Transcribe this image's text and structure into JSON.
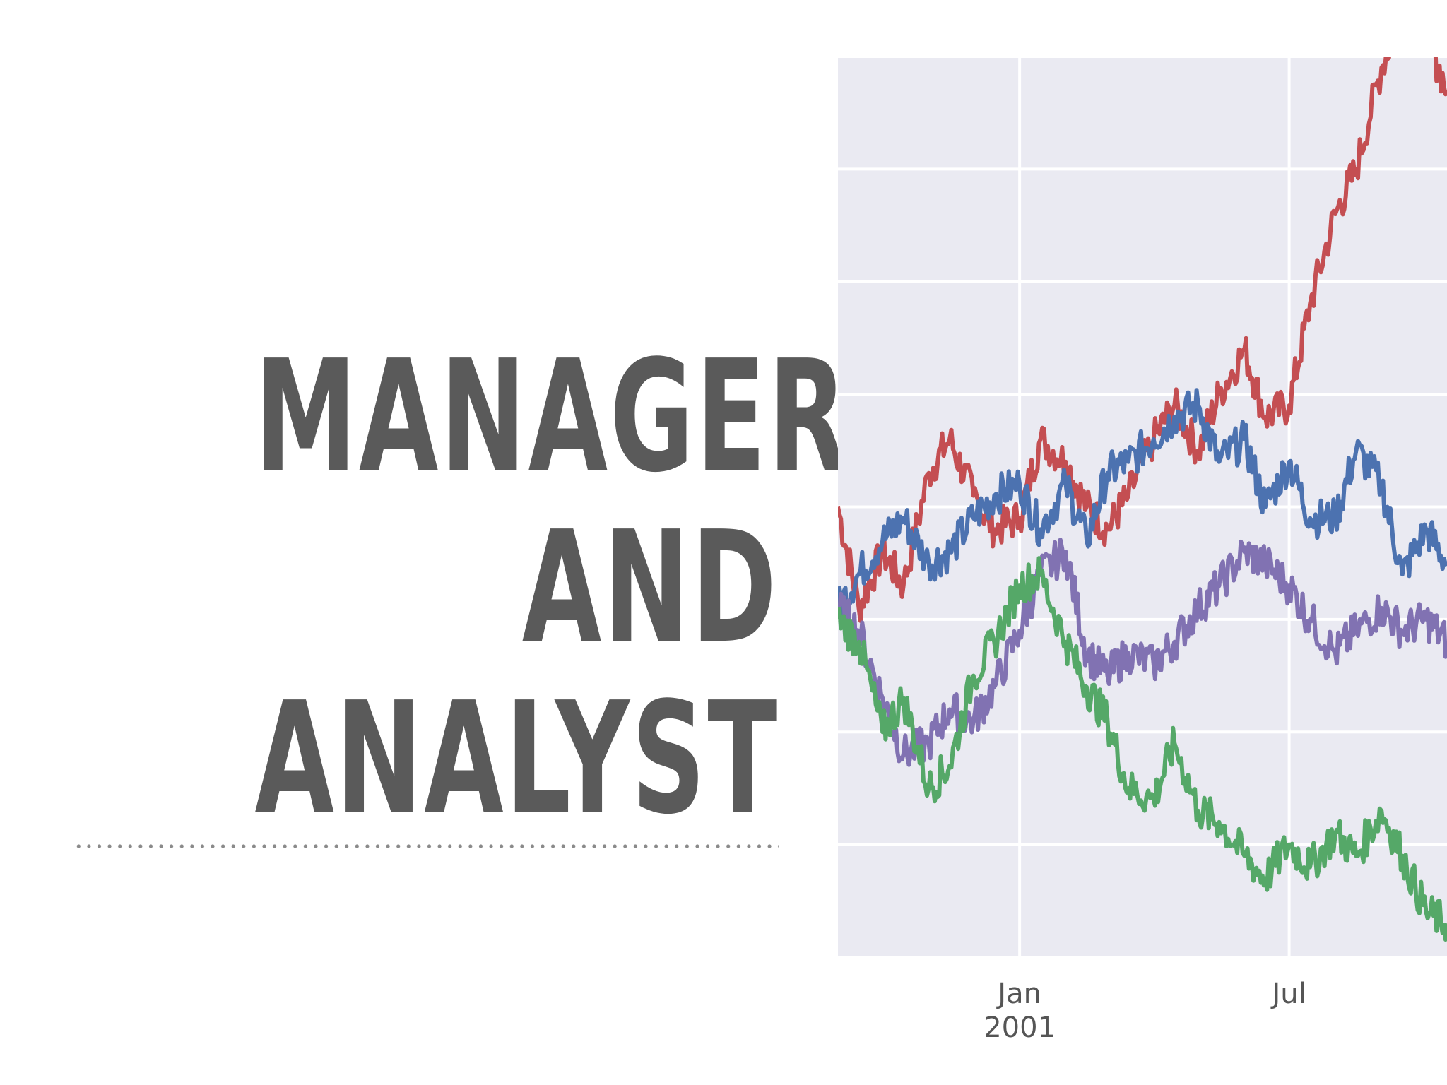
{
  "slide": {
    "title_lines": [
      "MANAGER",
      "AND",
      "ANALYST"
    ]
  },
  "chart_data": {
    "type": "line",
    "title": "",
    "xlabel": "",
    "ylabel": "",
    "x_tick_labels": [
      {
        "label": "Jan\n2001",
        "date": "2001-01-01"
      },
      {
        "label": "Jul",
        "date": "2001-07-01"
      }
    ],
    "x_range": [
      "2000-09-01",
      "2001-10-15"
    ],
    "y_range": [
      0,
      8
    ],
    "grid": true,
    "background": "#eaeaf2",
    "gridline_count_y": 8,
    "series": [
      {
        "color": "#c44e52",
        "x": [
          "2000-09-01",
          "2000-09-15",
          "2000-10-01",
          "2000-10-15",
          "2000-11-01",
          "2000-11-15",
          "2000-12-01",
          "2000-12-15",
          "2001-01-01",
          "2001-01-15",
          "2001-02-01",
          "2001-02-15",
          "2001-03-01",
          "2001-03-15",
          "2001-04-01",
          "2001-04-15",
          "2001-05-01",
          "2001-05-15",
          "2001-06-01",
          "2001-06-15",
          "2001-07-01",
          "2001-07-15",
          "2001-08-01",
          "2001-08-15",
          "2001-09-01",
          "2001-09-15",
          "2001-10-01",
          "2001-10-15"
        ],
        "values": [
          4.0,
          3.1,
          3.6,
          3.3,
          4.3,
          4.6,
          4.1,
          3.8,
          3.9,
          4.6,
          4.4,
          4.0,
          3.8,
          4.1,
          4.6,
          4.9,
          4.5,
          5.0,
          5.4,
          4.8,
          4.9,
          5.8,
          6.6,
          7.0,
          7.9,
          8.4,
          8.2,
          7.7
        ]
      },
      {
        "color": "#4c72b0",
        "x": [
          "2000-09-01",
          "2000-09-15",
          "2000-10-01",
          "2000-10-15",
          "2000-11-01",
          "2000-11-15",
          "2000-12-01",
          "2000-12-15",
          "2001-01-01",
          "2001-01-15",
          "2001-02-01",
          "2001-02-15",
          "2001-03-01",
          "2001-03-15",
          "2001-04-01",
          "2001-04-15",
          "2001-05-01",
          "2001-05-15",
          "2001-06-01",
          "2001-06-15",
          "2001-07-01",
          "2001-07-15",
          "2001-08-01",
          "2001-08-15",
          "2001-09-01",
          "2001-09-15",
          "2001-10-01",
          "2001-10-15"
        ],
        "values": [
          3.1,
          3.4,
          3.7,
          3.9,
          3.5,
          3.6,
          3.9,
          4.1,
          4.2,
          3.8,
          4.2,
          3.7,
          4.3,
          4.4,
          4.6,
          4.8,
          4.9,
          4.4,
          4.6,
          4.0,
          4.4,
          3.9,
          3.9,
          4.5,
          4.2,
          3.4,
          3.8,
          3.5
        ]
      },
      {
        "color": "#8172b2",
        "x": [
          "2000-09-01",
          "2000-09-15",
          "2000-10-01",
          "2000-10-15",
          "2000-11-01",
          "2000-11-15",
          "2000-12-01",
          "2000-12-15",
          "2001-01-01",
          "2001-01-15",
          "2001-02-01",
          "2001-02-15",
          "2001-03-01",
          "2001-03-15",
          "2001-04-01",
          "2001-04-15",
          "2001-05-01",
          "2001-05-15",
          "2001-06-01",
          "2001-06-15",
          "2001-07-01",
          "2001-07-15",
          "2001-08-01",
          "2001-08-15",
          "2001-09-01",
          "2001-09-15",
          "2001-10-01",
          "2001-10-15"
        ],
        "values": [
          3.1,
          2.9,
          2.3,
          1.8,
          1.9,
          2.2,
          2.1,
          2.4,
          2.9,
          3.4,
          3.6,
          2.7,
          2.5,
          2.7,
          2.6,
          2.8,
          3.1,
          3.3,
          3.6,
          3.5,
          3.3,
          3.0,
          2.7,
          2.9,
          3.1,
          2.9,
          3.0,
          2.8
        ]
      },
      {
        "color": "#55a868",
        "x": [
          "2000-09-01",
          "2000-09-15",
          "2000-10-01",
          "2000-10-15",
          "2000-11-01",
          "2000-11-15",
          "2000-12-01",
          "2000-12-15",
          "2001-01-01",
          "2001-01-15",
          "2001-02-01",
          "2001-02-15",
          "2001-03-01",
          "2001-03-15",
          "2001-04-01",
          "2001-04-15",
          "2001-05-01",
          "2001-05-15",
          "2001-06-01",
          "2001-06-15",
          "2001-07-01",
          "2001-07-15",
          "2001-08-01",
          "2001-08-15",
          "2001-09-01",
          "2001-09-15",
          "2001-10-01",
          "2001-10-15"
        ],
        "values": [
          3.0,
          2.8,
          2.0,
          2.3,
          1.5,
          1.7,
          2.5,
          2.8,
          3.3,
          3.4,
          2.8,
          2.4,
          2.1,
          1.5,
          1.4,
          1.9,
          1.3,
          1.2,
          0.9,
          0.7,
          1.0,
          0.8,
          1.1,
          0.9,
          1.3,
          0.9,
          0.4,
          0.3
        ]
      }
    ]
  }
}
